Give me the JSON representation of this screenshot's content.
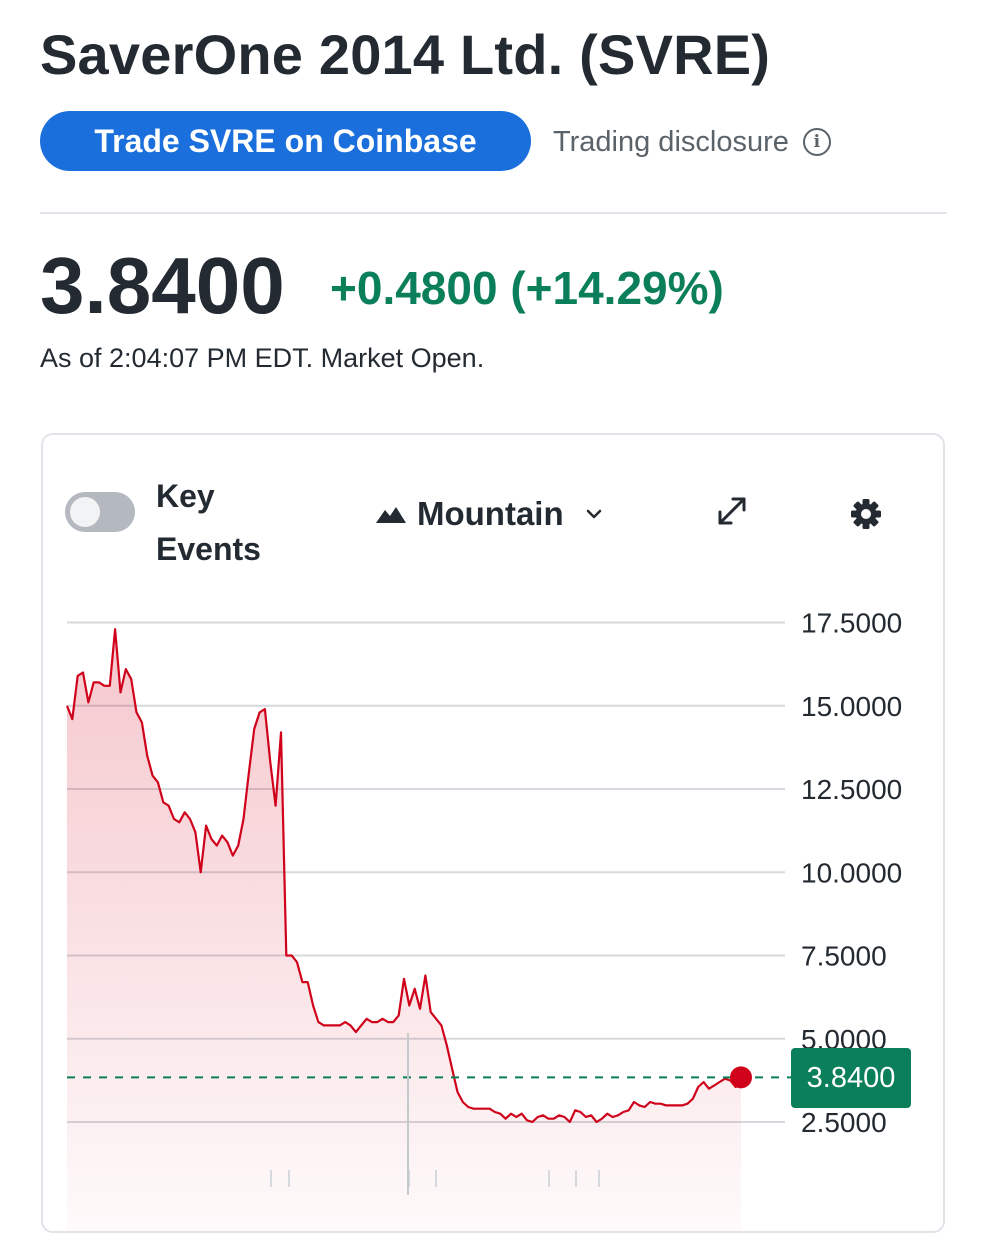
{
  "header": {
    "title": "SaverOne 2014 Ltd. (SVRE)",
    "trade_label": "Trade SVRE on Coinbase",
    "disclosure_label": "Trading disclosure"
  },
  "quote": {
    "price": "3.8400",
    "change": "+0.4800 (+14.29%)",
    "as_of": "As of 2:04:07 PM EDT. Market Open."
  },
  "chart_toolbar": {
    "key_events_label": "Key Events",
    "chart_type_label": "Mountain"
  },
  "colors": {
    "line": "#d0021b",
    "positive": "#0b7e5a",
    "accent": "#1a6fdc"
  },
  "chart_data": {
    "type": "area",
    "ylim": [
      1.8,
      18.0
    ],
    "y_ticks": [
      "17.5000",
      "15.0000",
      "12.5000",
      "10.0000",
      "7.5000",
      "5.0000",
      "2.5000"
    ],
    "current_price_label": "3.8400",
    "current_price": 3.84,
    "legend": "none",
    "grid": true,
    "series": [
      {
        "values": [
          15.0,
          14.6,
          15.9,
          16.0,
          15.1,
          15.7,
          15.7,
          15.6,
          15.6,
          17.3,
          15.4,
          16.1,
          15.8,
          14.8,
          14.5,
          13.5,
          12.9,
          12.7,
          12.1,
          12.0,
          11.6,
          11.5,
          11.8,
          11.6,
          11.2,
          10.0,
          11.4,
          11.0,
          10.8,
          11.1,
          10.9,
          10.5,
          10.8,
          11.6,
          13.0,
          14.3,
          14.8,
          14.9,
          13.3,
          12.0,
          14.2,
          7.5,
          7.5,
          7.3,
          6.7,
          6.7,
          6.0,
          5.5,
          5.4,
          5.4,
          5.4,
          5.4,
          5.5,
          5.4,
          5.2,
          5.4,
          5.6,
          5.5,
          5.5,
          5.6,
          5.5,
          5.5,
          5.7,
          6.8,
          6.0,
          6.5,
          5.9,
          6.9,
          5.8,
          5.6,
          5.4,
          4.8,
          4.1,
          3.4,
          3.1,
          2.95,
          2.9,
          2.9,
          2.9,
          2.9,
          2.8,
          2.75,
          2.6,
          2.75,
          2.65,
          2.75,
          2.55,
          2.5,
          2.65,
          2.7,
          2.6,
          2.6,
          2.7,
          2.65,
          2.5,
          2.85,
          2.8,
          2.65,
          2.7,
          2.5,
          2.6,
          2.75,
          2.65,
          2.7,
          2.8,
          2.85,
          3.1,
          3.0,
          2.95,
          3.1,
          3.05,
          3.05,
          3.0,
          3.0,
          3.0,
          3.0,
          3.05,
          3.2,
          3.55,
          3.7,
          3.5,
          3.6,
          3.7,
          3.8,
          3.75,
          3.55,
          3.84
        ]
      }
    ]
  }
}
